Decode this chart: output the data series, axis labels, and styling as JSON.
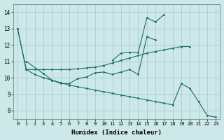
{
  "xlabel": "Humidex (Indice chaleur)",
  "xlim": [
    -0.5,
    23.5
  ],
  "ylim": [
    7.5,
    14.5
  ],
  "yticks": [
    8,
    9,
    10,
    11,
    12,
    13,
    14
  ],
  "xticks": [
    0,
    1,
    2,
    3,
    4,
    5,
    6,
    7,
    8,
    9,
    10,
    11,
    12,
    13,
    14,
    15,
    16,
    17,
    18,
    19,
    20,
    21,
    22,
    23
  ],
  "background_color": "#cde8e8",
  "grid_color": "#a0c8c8",
  "line_color": "#1a6b6b",
  "line1_x": [
    0,
    1,
    2,
    3,
    4,
    5,
    6,
    7,
    8,
    9,
    10,
    11,
    12,
    13,
    14,
    15,
    16,
    17,
    18,
    19,
    20
  ],
  "line1_y": [
    13.0,
    10.5,
    10.5,
    10.5,
    10.5,
    10.5,
    10.5,
    10.55,
    10.6,
    10.65,
    10.75,
    10.9,
    11.05,
    11.2,
    11.35,
    11.5,
    11.6,
    11.7,
    11.8,
    11.9,
    11.9
  ],
  "line2_x": [
    1,
    3,
    4,
    5,
    6,
    7,
    8,
    9,
    10,
    11,
    12,
    13,
    14,
    15,
    16
  ],
  "line2_y": [
    11.0,
    10.25,
    9.85,
    9.65,
    9.65,
    9.95,
    10.05,
    10.3,
    10.35,
    10.2,
    10.35,
    10.5,
    10.2,
    12.5,
    12.3
  ],
  "line3_x": [
    11,
    12,
    13,
    14,
    15,
    16,
    17
  ],
  "line3_y": [
    11.05,
    11.5,
    11.55,
    11.55,
    13.65,
    13.4,
    13.85
  ],
  "line4_x": [
    0,
    1,
    2,
    3,
    4,
    5,
    6,
    7,
    8,
    9,
    10,
    11,
    12,
    13,
    14,
    15,
    16,
    17,
    18,
    19,
    20,
    21,
    22,
    23
  ],
  "line4_y": [
    13.0,
    10.5,
    10.2,
    10.0,
    9.85,
    9.7,
    9.55,
    9.45,
    9.35,
    9.25,
    9.15,
    9.05,
    8.95,
    8.85,
    8.75,
    8.65,
    8.55,
    8.45,
    8.35,
    9.65,
    9.35,
    8.55,
    7.7,
    7.6
  ]
}
